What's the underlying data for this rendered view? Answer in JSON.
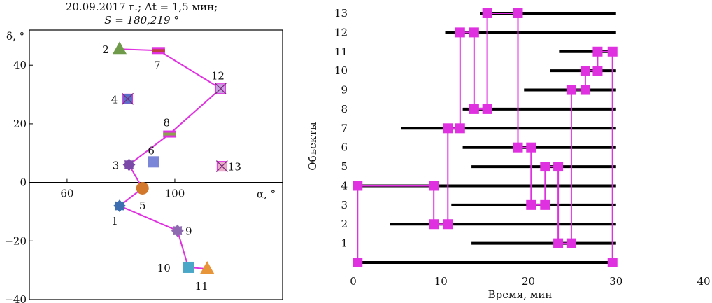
{
  "header": {
    "line1": "20.09.2017 г.;   Δt = 1,5 мин;",
    "line2": "S = 180,219 °"
  },
  "colors": {
    "magenta": "#e031e0",
    "axis": "#000000",
    "bar": "#000000"
  },
  "chart_data": [
    {
      "type": "scatter",
      "title": "20.09.2017 г.; Δt = 1,5 мин; S = 180,219 °",
      "xlabel": "α, °",
      "ylabel": "δ, °",
      "xlim": [
        46,
        140
      ],
      "ylim": [
        -40,
        52
      ],
      "xticks": [
        60,
        100
      ],
      "yticks": [
        40,
        20,
        0,
        -20,
        -40
      ],
      "ytick_labels": [
        "40",
        "20",
        "0",
        "−20",
        "−40"
      ],
      "path_order": [
        "2",
        "7",
        "12",
        "8",
        "3",
        "5",
        "1",
        "9",
        "10",
        "11"
      ],
      "points": [
        {
          "label": "1",
          "x": 79.5,
          "y": -8.0,
          "marker": "gear",
          "color": "#3d6fb0"
        },
        {
          "label": "2",
          "x": 79.5,
          "y": 45.5,
          "marker": "triangle",
          "color": "#6f9a4a"
        },
        {
          "label": "3",
          "x": 83.0,
          "y": 6.0,
          "marker": "gear",
          "color": "#7b4aa8"
        },
        {
          "label": "4",
          "x": 82.5,
          "y": 28.5,
          "marker": "xsquare",
          "color": "#5b6fc8"
        },
        {
          "label": "5",
          "x": 88.0,
          "y": -2.0,
          "marker": "circle",
          "color": "#d2782c"
        },
        {
          "label": "6",
          "x": 92.0,
          "y": 7.0,
          "marker": "square",
          "color": "#7b86d8"
        },
        {
          "label": "7",
          "x": 94.0,
          "y": 45.0,
          "marker": "dash",
          "color": "#c04040"
        },
        {
          "label": "8",
          "x": 98.0,
          "y": 16.5,
          "marker": "dash",
          "color": "#8fa050"
        },
        {
          "label": "9",
          "x": 101.0,
          "y": -16.5,
          "marker": "gear",
          "color": "#8e6ab0"
        },
        {
          "label": "10",
          "x": 105.0,
          "y": -29.0,
          "marker": "square",
          "color": "#4aa7c8"
        },
        {
          "label": "11",
          "x": 112.0,
          "y": -29.5,
          "marker": "triangle",
          "color": "#e8953a"
        },
        {
          "label": "12",
          "x": 117.0,
          "y": 32.0,
          "marker": "xsquare",
          "color": "#c7a0e0"
        },
        {
          "label": "13",
          "x": 117.5,
          "y": 5.5,
          "marker": "xsquare",
          "color": "#e8b0c8"
        }
      ]
    },
    {
      "type": "timeline",
      "xlabel": "Время, мин",
      "ylabel": "Объекты",
      "xlim": [
        0,
        40
      ],
      "ylim": [
        0,
        13
      ],
      "xticks": [
        0,
        10,
        20,
        30,
        40
      ],
      "yticks": [
        1,
        2,
        3,
        4,
        5,
        6,
        7,
        8,
        9,
        10,
        11,
        12,
        13
      ],
      "bars": [
        {
          "object": 0,
          "start": 0,
          "end": 30
        },
        {
          "object": 1,
          "start": 13.5,
          "end": 30
        },
        {
          "object": 2,
          "start": 4.2,
          "end": 30
        },
        {
          "object": 3,
          "start": 11.2,
          "end": 30
        },
        {
          "object": 4,
          "start": 0,
          "end": 30
        },
        {
          "object": 5,
          "start": 13.5,
          "end": 30
        },
        {
          "object": 6,
          "start": 12.5,
          "end": 30
        },
        {
          "object": 7,
          "start": 5.5,
          "end": 30
        },
        {
          "object": 8,
          "start": 12.5,
          "end": 30
        },
        {
          "object": 9,
          "start": 19.5,
          "end": 30
        },
        {
          "object": 10,
          "start": 22.5,
          "end": 30
        },
        {
          "object": 11,
          "start": 23.5,
          "end": 30
        },
        {
          "object": 12,
          "start": 10.5,
          "end": 30
        },
        {
          "object": 13,
          "start": 14.5,
          "end": 30
        }
      ],
      "path": [
        [
          0.5,
          0
        ],
        [
          0.5,
          4
        ],
        [
          9.2,
          4
        ],
        [
          9.2,
          2
        ],
        [
          10.8,
          2
        ],
        [
          10.8,
          7
        ],
        [
          12.2,
          7
        ],
        [
          12.2,
          12
        ],
        [
          13.8,
          12
        ],
        [
          13.8,
          8
        ],
        [
          15.3,
          8
        ],
        [
          15.3,
          13
        ],
        [
          18.8,
          13
        ],
        [
          18.8,
          6
        ],
        [
          20.3,
          6
        ],
        [
          20.3,
          3
        ],
        [
          21.9,
          3
        ],
        [
          21.9,
          5
        ],
        [
          23.4,
          5
        ],
        [
          23.4,
          1
        ],
        [
          24.9,
          1
        ],
        [
          24.9,
          9
        ],
        [
          26.5,
          9
        ],
        [
          26.5,
          10
        ],
        [
          27.9,
          10
        ],
        [
          27.9,
          11
        ],
        [
          29.6,
          11
        ],
        [
          29.6,
          0
        ]
      ],
      "marker_points": [
        [
          0.5,
          0
        ],
        [
          0.5,
          4
        ],
        [
          9.2,
          4
        ],
        [
          9.2,
          2
        ],
        [
          10.8,
          2
        ],
        [
          10.8,
          7
        ],
        [
          12.2,
          7
        ],
        [
          12.2,
          12
        ],
        [
          13.8,
          12
        ],
        [
          13.8,
          8
        ],
        [
          15.3,
          8
        ],
        [
          15.3,
          13
        ],
        [
          18.8,
          13
        ],
        [
          18.8,
          6
        ],
        [
          20.3,
          6
        ],
        [
          20.3,
          3
        ],
        [
          21.9,
          3
        ],
        [
          21.9,
          5
        ],
        [
          23.4,
          5
        ],
        [
          23.4,
          1
        ],
        [
          24.9,
          1
        ],
        [
          24.9,
          9
        ],
        [
          26.5,
          9
        ],
        [
          26.5,
          10
        ],
        [
          27.9,
          10
        ],
        [
          27.9,
          11
        ],
        [
          29.6,
          11
        ],
        [
          29.6,
          0
        ]
      ]
    }
  ]
}
